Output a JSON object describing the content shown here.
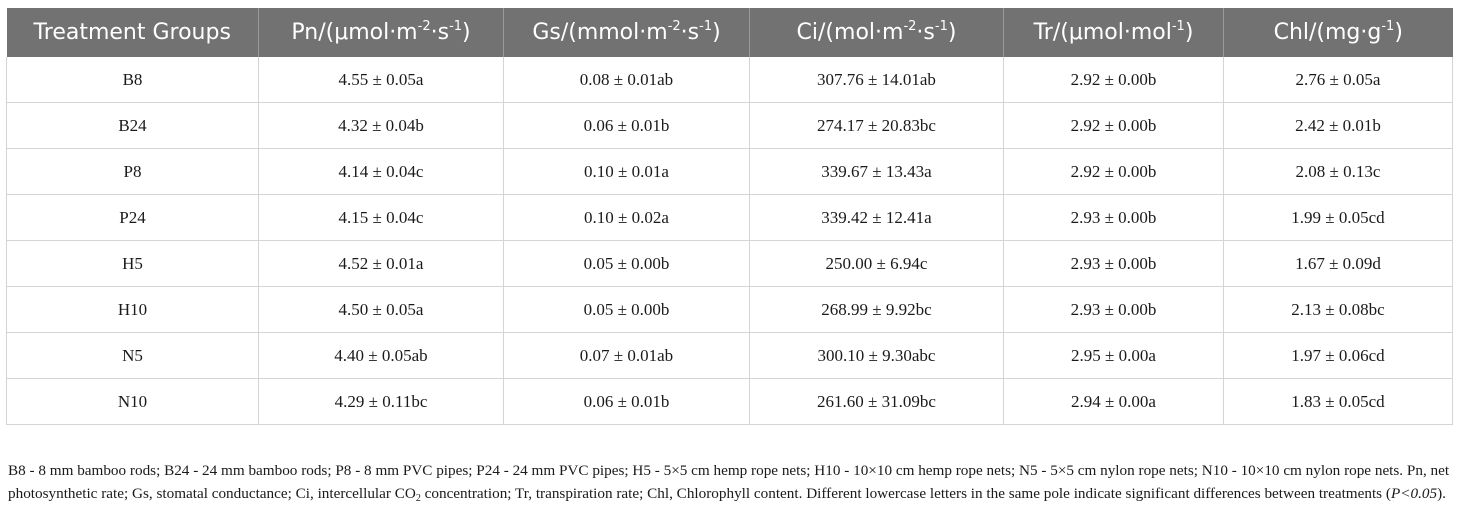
{
  "table": {
    "columns": [
      {
        "base": "Treatment Groups",
        "parts": []
      },
      {
        "base": "Pn/(μmol·m",
        "parts": [
          {
            "sup": "-2"
          },
          {
            "text": "·s"
          },
          {
            "sup": "-1"
          },
          {
            "text": ")"
          }
        ]
      },
      {
        "base": "Gs/(mmol·m",
        "parts": [
          {
            "sup": "-2"
          },
          {
            "text": "·s"
          },
          {
            "sup": "-1"
          },
          {
            "text": ")"
          }
        ]
      },
      {
        "base": "Ci/(mol·m",
        "parts": [
          {
            "sup": "-2"
          },
          {
            "text": "·s"
          },
          {
            "sup": "-1"
          },
          {
            "text": ")"
          }
        ]
      },
      {
        "base": "Tr/(μmol·mol",
        "parts": [
          {
            "sup": "-1"
          },
          {
            "text": ")"
          }
        ]
      },
      {
        "base": "Chl/(mg·g",
        "parts": [
          {
            "sup": "-1"
          },
          {
            "text": ")"
          }
        ]
      }
    ],
    "rows": [
      [
        "B8",
        "4.55 ± 0.05a",
        "0.08 ± 0.01ab",
        "307.76 ± 14.01ab",
        "2.92 ± 0.00b",
        "2.76 ± 0.05a"
      ],
      [
        "B24",
        "4.32 ± 0.04b",
        "0.06 ± 0.01b",
        "274.17 ± 20.83bc",
        "2.92 ± 0.00b",
        "2.42 ± 0.01b"
      ],
      [
        "P8",
        "4.14 ± 0.04c",
        "0.10 ± 0.01a",
        "339.67 ± 13.43a",
        "2.92 ± 0.00b",
        "2.08 ± 0.13c"
      ],
      [
        "P24",
        "4.15 ± 0.04c",
        "0.10 ± 0.02a",
        "339.42 ± 12.41a",
        "2.93 ± 0.00b",
        "1.99 ± 0.05cd"
      ],
      [
        "H5",
        "4.52 ± 0.01a",
        "0.05 ± 0.00b",
        "250.00 ± 6.94c",
        "2.93 ± 0.00b",
        "1.67 ± 0.09d"
      ],
      [
        "H10",
        "4.50 ± 0.05a",
        "0.05 ± 0.00b",
        "268.99 ± 9.92bc",
        "2.93 ± 0.00b",
        "2.13 ± 0.08bc"
      ],
      [
        "N5",
        "4.40 ± 0.05ab",
        "0.07 ± 0.01ab",
        "300.10 ± 9.30abc",
        "2.95 ± 0.00a",
        "1.97 ± 0.06cd"
      ],
      [
        "N10",
        "4.29 ± 0.11bc",
        "0.06 ± 0.01b",
        "261.60 ± 31.09bc",
        "2.94 ± 0.00a",
        "1.83 ± 0.05cd"
      ]
    ],
    "header_bg_color": "#727272"
  },
  "footnote": {
    "before_co2": "B8 - 8 mm bamboo rods; B24 - 24 mm bamboo rods; P8 - 8 mm PVC pipes; P24 - 24 mm PVC pipes; H5 - 5×5 cm hemp rope nets; H10 - 10×10 cm hemp rope nets; N5 - 5×5 cm nylon rope nets; N10 - 10×10 cm nylon rope nets. Pn, net photosynthetic rate; Gs, stomatal conductance; Ci, intercellular CO",
    "co2_subscript": "2",
    "after_co2": " concentration; Tr, transpiration rate; Chl, Chlorophyll content. Different lowercase letters in the same pole indicate significant differences between treatments (",
    "p_value": "P<0.05",
    "closing": ")."
  }
}
